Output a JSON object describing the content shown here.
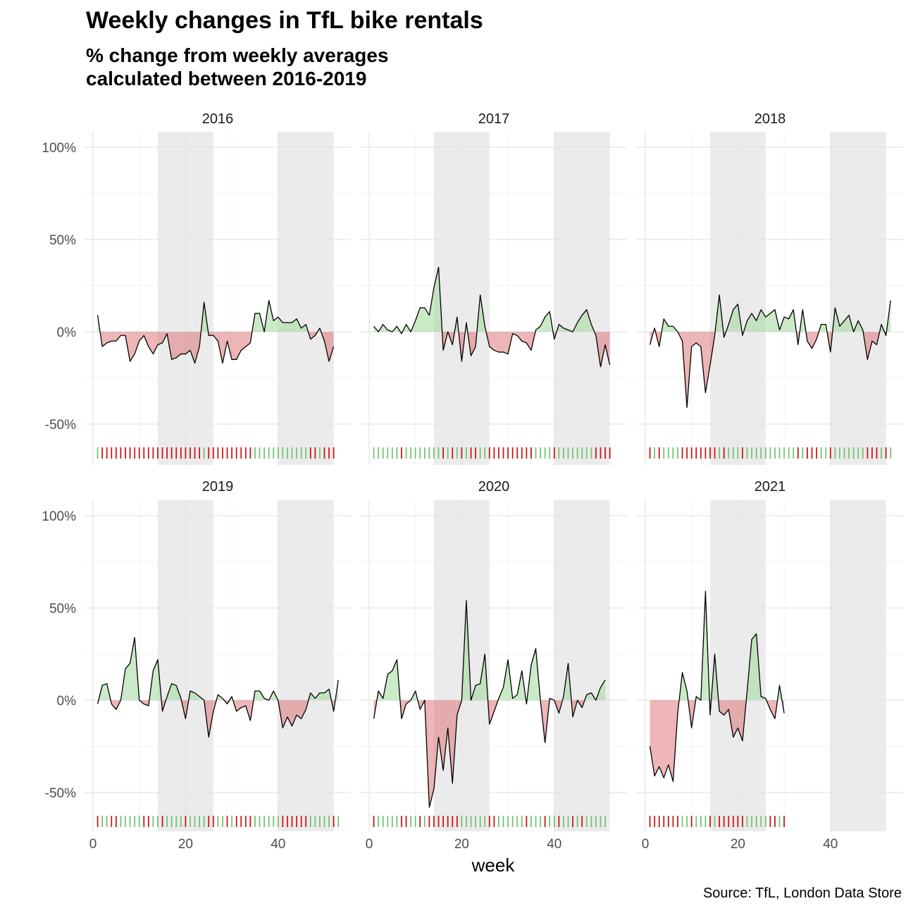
{
  "title": "Weekly changes in TfL bike rentals",
  "subtitle_line1": "% change from weekly averages",
  "subtitle_line2": "calculated between 2016-2019",
  "caption": "Source: TfL, London Data Store",
  "colors": {
    "positive": "#74c476",
    "negative": "#cb181d",
    "positive_fill": "#a1d99b",
    "negative_fill": "#de6b6e",
    "shade": "#ebebeb",
    "grid": "#ebebeb",
    "line": "#000000"
  },
  "chart_data": {
    "type": "area",
    "xlabel": "week",
    "ylabel": "",
    "xlim": [
      0,
      53
    ],
    "ylim": [
      -0.62,
      1.0
    ],
    "x_ticks": [
      0,
      20,
      40
    ],
    "y_ticks": [
      -0.5,
      0,
      0.5,
      1.0
    ],
    "y_tick_labels": [
      "-50%",
      "0%",
      "50%",
      "100%"
    ],
    "shaded_week_ranges": [
      [
        14,
        26
      ],
      [
        40,
        52
      ]
    ],
    "facets": [
      {
        "year": "2016",
        "values": [
          0.09,
          -0.08,
          -0.06,
          -0.05,
          -0.05,
          -0.02,
          -0.02,
          -0.16,
          -0.12,
          -0.05,
          -0.02,
          -0.08,
          -0.12,
          -0.07,
          -0.06,
          -0.01,
          -0.15,
          -0.14,
          -0.12,
          -0.12,
          -0.1,
          -0.17,
          -0.08,
          0.16,
          -0.02,
          -0.02,
          -0.05,
          -0.17,
          -0.05,
          -0.15,
          -0.15,
          -0.1,
          -0.08,
          -0.06,
          0.1,
          0.1,
          0.0,
          0.17,
          0.06,
          0.08,
          0.05,
          0.05,
          0.05,
          0.07,
          0.02,
          0.04,
          -0.04,
          -0.02,
          0.02,
          -0.05,
          -0.16,
          -0.08
        ]
      },
      {
        "year": "2017",
        "values": [
          0.03,
          0.0,
          0.04,
          0.01,
          0.0,
          0.03,
          -0.01,
          0.04,
          0.0,
          0.06,
          0.13,
          0.13,
          0.09,
          0.24,
          0.35,
          -0.1,
          0.0,
          -0.07,
          0.08,
          -0.16,
          0.05,
          -0.13,
          -0.08,
          0.2,
          0.03,
          -0.08,
          -0.1,
          -0.11,
          -0.11,
          -0.12,
          -0.01,
          -0.02,
          -0.05,
          -0.06,
          -0.1,
          0.01,
          0.03,
          0.08,
          0.11,
          -0.04,
          0.04,
          0.02,
          0.01,
          0.0,
          0.05,
          0.09,
          0.12,
          0.04,
          -0.02,
          -0.19,
          -0.07,
          -0.18
        ]
      },
      {
        "year": "2018",
        "values": [
          -0.07,
          0.02,
          -0.08,
          0.07,
          0.03,
          0.03,
          0.0,
          -0.05,
          -0.41,
          -0.08,
          -0.06,
          -0.08,
          -0.33,
          -0.18,
          -0.02,
          0.2,
          -0.03,
          0.04,
          0.12,
          0.15,
          -0.02,
          0.06,
          0.1,
          0.06,
          0.12,
          0.08,
          0.1,
          0.12,
          0.01,
          0.08,
          0.07,
          0.12,
          -0.07,
          0.12,
          -0.05,
          -0.09,
          -0.04,
          0.04,
          0.04,
          -0.11,
          0.13,
          0.03,
          0.06,
          0.09,
          0.0,
          0.06,
          0.01,
          -0.15,
          -0.05,
          -0.07,
          0.04,
          -0.02,
          0.17
        ]
      },
      {
        "year": "2019",
        "values": [
          -0.02,
          0.08,
          0.09,
          -0.02,
          -0.05,
          0.0,
          0.17,
          0.2,
          0.34,
          0.0,
          -0.02,
          -0.03,
          0.16,
          0.22,
          -0.06,
          0.02,
          0.09,
          0.08,
          0.01,
          -0.1,
          0.05,
          0.04,
          0.02,
          0.0,
          -0.2,
          -0.06,
          0.03,
          0.01,
          -0.02,
          0.02,
          -0.06,
          -0.04,
          -0.03,
          -0.11,
          0.05,
          0.05,
          0.01,
          0.0,
          0.05,
          0.0,
          -0.15,
          -0.09,
          -0.14,
          -0.08,
          -0.1,
          -0.05,
          0.04,
          0.01,
          0.04,
          0.04,
          0.06,
          -0.06,
          0.11
        ]
      },
      {
        "year": "2020",
        "values": [
          -0.1,
          0.05,
          0.01,
          0.14,
          0.16,
          0.22,
          -0.1,
          -0.02,
          0.0,
          0.05,
          -0.05,
          0.0,
          -0.58,
          -0.48,
          -0.2,
          -0.38,
          -0.15,
          -0.45,
          -0.08,
          0.0,
          0.54,
          0.0,
          0.08,
          0.09,
          0.25,
          -0.13,
          -0.06,
          0.01,
          0.07,
          0.22,
          0.01,
          0.03,
          0.16,
          -0.02,
          0.19,
          0.28,
          0.0,
          -0.23,
          0.01,
          0.0,
          -0.07,
          0.02,
          0.2,
          -0.09,
          0.0,
          -0.04,
          0.03,
          0.04,
          0.0,
          0.07,
          0.11
        ]
      },
      {
        "year": "2021",
        "values": [
          -0.25,
          -0.41,
          -0.36,
          -0.42,
          -0.35,
          -0.44,
          -0.07,
          0.15,
          0.05,
          -0.15,
          0.02,
          0.0,
          0.59,
          -0.08,
          0.25,
          -0.06,
          -0.08,
          -0.05,
          -0.2,
          -0.15,
          -0.22,
          0.05,
          0.33,
          0.36,
          0.02,
          0.01,
          -0.05,
          -0.1,
          0.08,
          -0.07
        ]
      }
    ]
  }
}
